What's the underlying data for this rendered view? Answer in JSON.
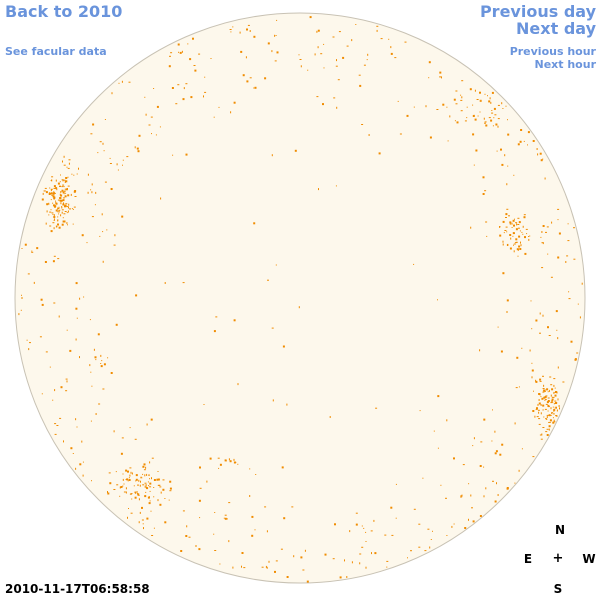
{
  "nav": {
    "back_label": "Back to 2010",
    "facular_label": "See facular data",
    "prev_day_label": "Previous day",
    "next_day_label": "Next day",
    "prev_hour_label": "Previous hour",
    "next_hour_label": "Next hour"
  },
  "timestamp": "2010-11-17T06:58:58",
  "compass": {
    "north": "N",
    "east": "E",
    "center": "+",
    "west": "W",
    "south": "S"
  },
  "colors": {
    "link": "#6a94dc",
    "disk_fill": "#fdf8ec",
    "disk_edge": "#c8c2b4",
    "facula": "#f08c00"
  }
}
